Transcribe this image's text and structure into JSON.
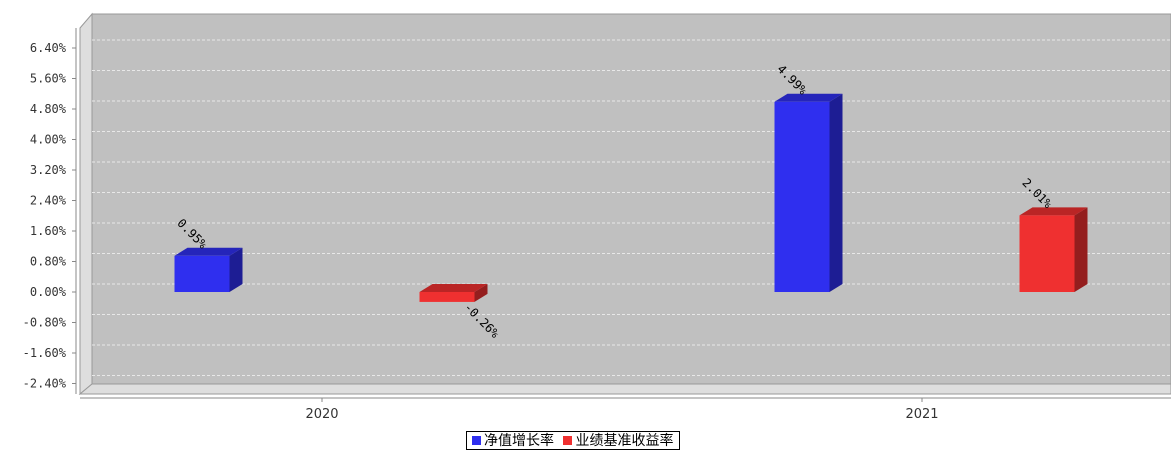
{
  "chart_data": {
    "type": "bar",
    "categories": [
      "2020",
      "2021"
    ],
    "series": [
      {
        "name": "净值增长率",
        "values": [
          0.95,
          4.99
        ],
        "labels": [
          "0.95%",
          "4.99%"
        ],
        "color": "#2f2fef"
      },
      {
        "name": "业绩基准收益率",
        "values": [
          -0.26,
          2.01
        ],
        "labels": [
          "-0.26%",
          "2.01%"
        ],
        "color": "#ef3030"
      }
    ],
    "yticks": [
      "6.40%",
      "5.60%",
      "4.80%",
      "4.00%",
      "3.20%",
      "2.40%",
      "1.60%",
      "0.80%",
      "0.00%",
      "-0.80%",
      "-1.60%",
      "-2.40%"
    ],
    "ytick_values": [
      6.4,
      5.6,
      4.8,
      4.0,
      3.2,
      2.4,
      1.6,
      0.8,
      0.0,
      -0.8,
      -1.6,
      -2.4
    ],
    "ylim": [
      -2.4,
      6.4
    ],
    "grid": true,
    "legend_position": "bottom-center",
    "plot_background": "#c0c0c0"
  }
}
